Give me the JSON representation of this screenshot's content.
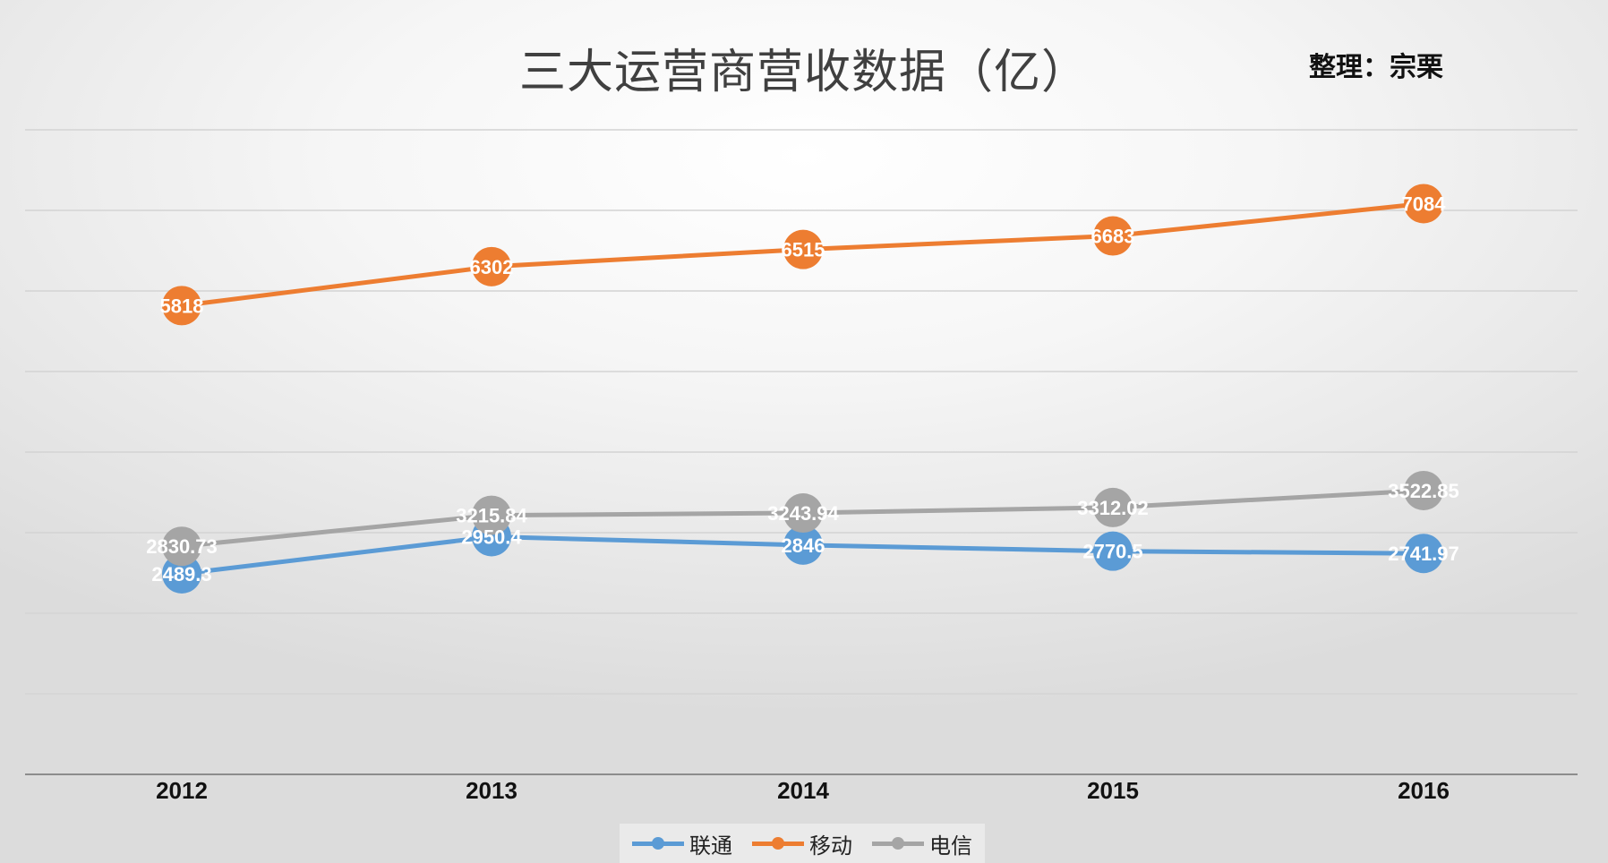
{
  "title": "三大运营商营收数据（亿）",
  "author": "整理：宗栗",
  "chart_data": {
    "type": "line",
    "categories": [
      "2012",
      "2013",
      "2014",
      "2015",
      "2016"
    ],
    "series": [
      {
        "name": "联通",
        "color": "#5b9bd5",
        "values": [
          2489.3,
          2950.4,
          2846,
          2770.5,
          2741.97
        ],
        "labels": [
          "2489.3",
          "2950.4",
          "2846",
          "2770.5",
          "2741.97"
        ]
      },
      {
        "name": "移动",
        "color": "#ed7d31",
        "values": [
          5818,
          6302,
          6515,
          6683,
          7084
        ],
        "labels": [
          "5818",
          "6302",
          "6515",
          "6683",
          "7084"
        ]
      },
      {
        "name": "电信",
        "color": "#a5a5a5",
        "values": [
          2830.73,
          3215.84,
          3243.94,
          3312.02,
          3522.85
        ],
        "labels": [
          "2830.73",
          "3215.84",
          "3243.94",
          "3312.02",
          "3522.85"
        ]
      }
    ],
    "ylim": [
      0,
      8000
    ],
    "grid": true,
    "y_tick_labels_shown": false,
    "data_labels": true,
    "legend_position": "bottom"
  }
}
